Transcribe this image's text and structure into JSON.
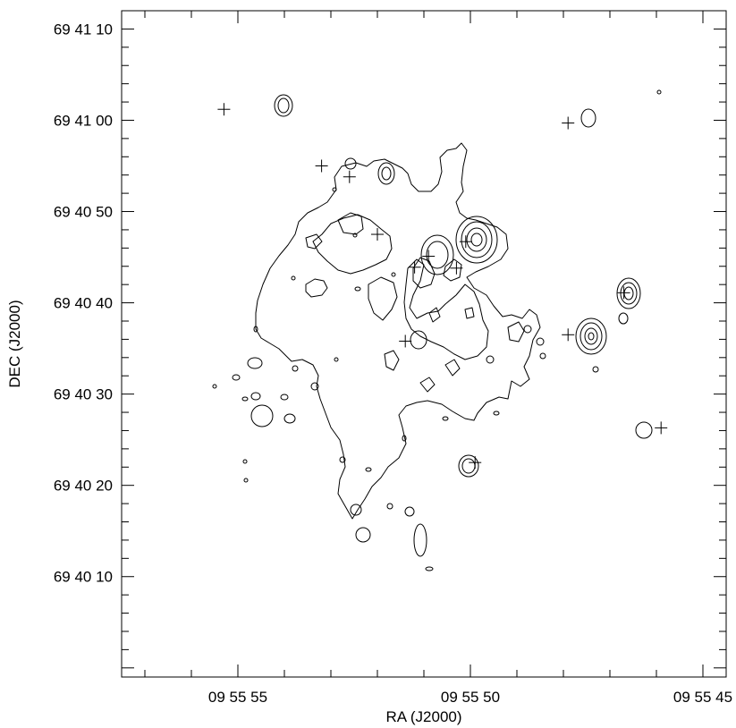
{
  "chart_data": {
    "type": "contour",
    "xlabel": "RA (J2000)",
    "ylabel": "DEC (J2000)",
    "x_tick_labels": [
      "09 55 55",
      "09 55 50",
      "09 55 45"
    ],
    "x_tick_seconds": [
      55,
      50,
      45
    ],
    "x_range_seconds": [
      57.5,
      44.5
    ],
    "y_tick_labels": [
      "69 41 10",
      "69 41 00",
      "69 40 50",
      "69 40 40",
      "69 40 30",
      "69 40 20",
      "69 40 10"
    ],
    "y_tick_arcsec": [
      70,
      60,
      50,
      40,
      30,
      20,
      10
    ],
    "y_range_arcsec": [
      -1,
      72
    ],
    "grid": false,
    "point_sources": [
      {
        "ra_s": 55.3,
        "dec_as": 61.2
      },
      {
        "ra_s": 53.2,
        "dec_as": 55.0
      },
      {
        "ra_s": 52.6,
        "dec_as": 53.8
      },
      {
        "ra_s": 52.0,
        "dec_as": 47.5
      },
      {
        "ra_s": 50.1,
        "dec_as": 46.7
      },
      {
        "ra_s": 50.9,
        "dec_as": 45.1
      },
      {
        "ra_s": 51.2,
        "dec_as": 43.9
      },
      {
        "ra_s": 50.3,
        "dec_as": 43.8
      },
      {
        "ra_s": 51.4,
        "dec_as": 35.8
      },
      {
        "ra_s": 49.9,
        "dec_as": 22.5
      },
      {
        "ra_s": 47.9,
        "dec_as": 36.5
      },
      {
        "ra_s": 47.9,
        "dec_as": 59.7
      },
      {
        "ra_s": 46.7,
        "dec_as": 41.1
      },
      {
        "ra_s": 45.9,
        "dec_as": 26.3
      }
    ],
    "contour_levels_note": ""
  }
}
